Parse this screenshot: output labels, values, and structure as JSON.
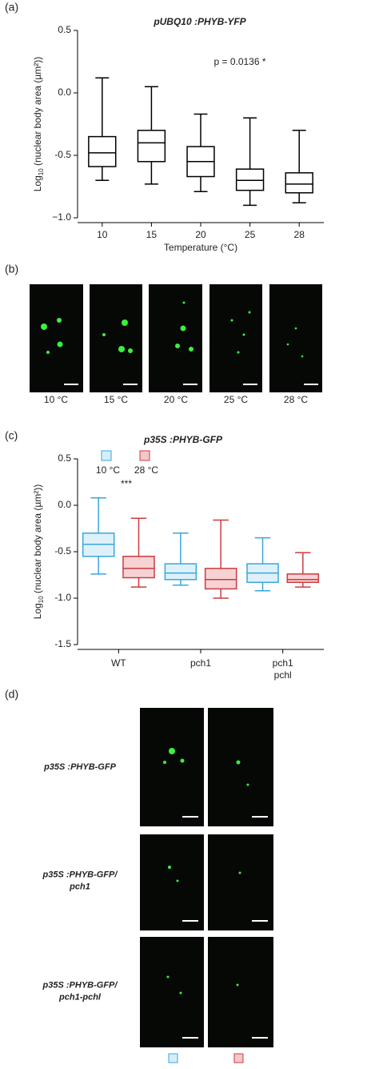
{
  "figure": {
    "panel_labels": [
      "(a)",
      "(b)",
      "(c)",
      "(d)"
    ],
    "b_captions": [
      "10 °C",
      "15 °C",
      "20 °C",
      "25 °C",
      "28 °C"
    ],
    "d_rows": [
      [
        "p35S :PHYB-GFP"
      ],
      [
        "p35S :PHYB-GFP/",
        "pch1"
      ],
      [
        "p35S :PHYB-GFP/",
        "pch1-pchl"
      ]
    ]
  },
  "chart_data": [
    {
      "type": "box",
      "title": "pUBQ10 :PHYB-YFP",
      "annotation": "p = 0.0136 *",
      "ylabel": [
        "Log",
        "10",
        " (nuclear body area (µm²))"
      ],
      "xlabel": "Temperature (°C)",
      "categories": [
        "10",
        "15",
        "20",
        "25",
        "28"
      ],
      "ylim": [
        -1.0,
        0.5
      ],
      "yticks": [
        {
          "value": -1.0,
          "label": "−1.0"
        },
        {
          "value": -0.5,
          "label": "-0.5"
        },
        {
          "value": 0.0,
          "label": "0.0"
        },
        {
          "value": 0.5,
          "label": "0.5"
        }
      ],
      "series": [
        {
          "color": "#000000",
          "max": [
            0.12,
            0.05,
            -0.17,
            -0.2,
            -0.3
          ],
          "q3": [
            -0.35,
            -0.3,
            -0.43,
            -0.61,
            -0.64
          ],
          "median": [
            -0.48,
            -0.4,
            -0.55,
            -0.7,
            -0.73
          ],
          "q1": [
            -0.59,
            -0.55,
            -0.67,
            -0.78,
            -0.8
          ],
          "min": [
            -0.7,
            -0.73,
            -0.79,
            -0.9,
            -0.88
          ]
        }
      ]
    },
    {
      "type": "box",
      "title": "p35S :PHYB-GFP",
      "annotation": "***",
      "ylabel": [
        "Log",
        "10",
        " (nuclear body area (µm²))"
      ],
      "categories": [
        [
          "WT"
        ],
        [
          "pch1"
        ],
        [
          "pch1",
          "pchl"
        ]
      ],
      "ylim": [
        -1.5,
        0.5
      ],
      "yticks": [
        {
          "value": -1.5,
          "label": "-1.5"
        },
        {
          "value": -1.0,
          "label": "-1.0"
        },
        {
          "value": -0.5,
          "label": "-0.5"
        },
        {
          "value": 0.0,
          "label": "0.0"
        },
        {
          "value": 0.5,
          "label": "0.5"
        }
      ],
      "series": [
        {
          "name": "10 °C",
          "color": "#3aa6dd",
          "fill": "#d6eef9",
          "max": [
            0.08,
            -0.3,
            -0.35
          ],
          "q3": [
            -0.3,
            -0.63,
            -0.63
          ],
          "median": [
            -0.42,
            -0.73,
            -0.73
          ],
          "q1": [
            -0.55,
            -0.8,
            -0.83
          ],
          "min": [
            -0.74,
            -0.86,
            -0.92
          ]
        },
        {
          "name": "28 °C",
          "color": "#cc3b40",
          "fill": "#f4c7c9",
          "max": [
            -0.14,
            -0.16,
            -0.51
          ],
          "q3": [
            -0.55,
            -0.68,
            -0.74
          ],
          "median": [
            -0.68,
            -0.8,
            -0.8
          ],
          "q1": [
            -0.78,
            -0.9,
            -0.83
          ],
          "min": [
            -0.88,
            -1.0,
            -0.88
          ]
        }
      ]
    }
  ]
}
